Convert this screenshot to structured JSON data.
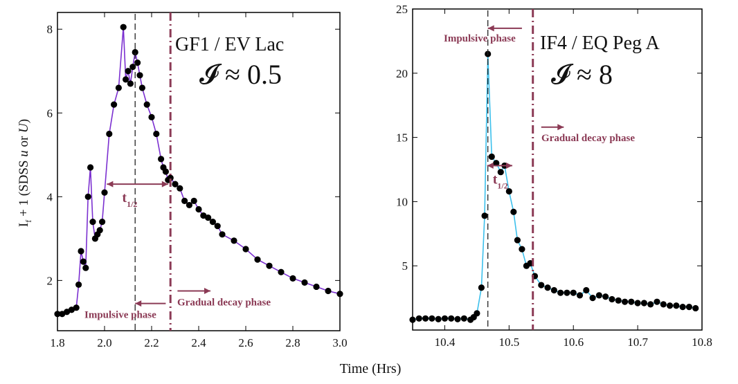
{
  "figure": {
    "xlabel_shared": "Time (Hrs)",
    "ylabel": {
      "main": "I",
      "sub": "f",
      "tail": " + 1 (SDSS ",
      "u": "u",
      "or": " or ",
      "U": "U",
      "close": ")"
    }
  },
  "colors": {
    "annotation": "#8b3a55",
    "curve_left": "#7b2fd0",
    "curve_right": "#3cc0ec",
    "marker": "#000000"
  },
  "chart_data": [
    {
      "type": "line",
      "title": "GF1 / EV Lac",
      "index_label": "𝓘 ≈ 0.5",
      "xlim": [
        1.8,
        3.0
      ],
      "ylim": [
        0.8,
        8.4
      ],
      "xticks": [
        1.8,
        2.0,
        2.2,
        2.4,
        2.6,
        2.8,
        3.0
      ],
      "xtick_labels": [
        "1.8",
        "2.0",
        "2.2",
        "2.4",
        "2.6",
        "2.8",
        "3.0"
      ],
      "yticks": [
        2,
        4,
        6,
        8
      ],
      "ytick_labels": [
        "2",
        "4",
        "6",
        "8"
      ],
      "peak_time": 2.13,
      "decay_boundary": 2.28,
      "t_half": {
        "label": "t",
        "sub": "1/2",
        "start": 2.01,
        "end": 2.27,
        "level": 4.3
      },
      "annotations": {
        "impulsive": {
          "label": "Impulsive phase",
          "arrow_from": 2.26,
          "arrow_to": 2.13,
          "level": 1.45
        },
        "gradual": {
          "label": "Gradual decay phase",
          "arrow_from": 2.31,
          "arrow_to": 2.45,
          "level": 1.75
        }
      },
      "series": [
        {
          "name": "flare",
          "x": [
            1.8,
            1.82,
            1.84,
            1.86,
            1.88,
            1.89,
            1.9,
            1.91,
            1.92,
            1.93,
            1.94,
            1.95,
            1.96,
            1.97,
            1.98,
            1.99,
            2.0,
            2.02,
            2.04,
            2.06,
            2.08,
            2.09,
            2.1,
            2.11,
            2.12,
            2.13,
            2.14,
            2.15,
            2.16,
            2.18,
            2.2,
            2.22,
            2.24,
            2.25,
            2.26,
            2.27,
            2.28,
            2.3,
            2.32,
            2.34,
            2.36,
            2.38,
            2.4,
            2.42,
            2.44,
            2.46,
            2.48,
            2.5,
            2.55,
            2.6,
            2.65,
            2.7,
            2.75,
            2.8,
            2.85,
            2.9,
            2.95,
            3.0
          ],
          "y": [
            1.2,
            1.2,
            1.25,
            1.3,
            1.35,
            1.9,
            2.7,
            2.45,
            2.3,
            4.0,
            4.7,
            3.4,
            3.0,
            3.1,
            3.2,
            3.4,
            4.1,
            5.5,
            6.2,
            6.6,
            8.05,
            6.8,
            7.0,
            6.7,
            7.1,
            7.45,
            7.2,
            6.9,
            6.6,
            6.2,
            5.9,
            5.5,
            4.9,
            4.7,
            4.6,
            4.4,
            4.45,
            4.3,
            4.2,
            3.9,
            3.8,
            3.9,
            3.7,
            3.55,
            3.5,
            3.4,
            3.3,
            3.1,
            2.95,
            2.75,
            2.5,
            2.35,
            2.2,
            2.05,
            1.95,
            1.85,
            1.75,
            1.68
          ]
        }
      ]
    },
    {
      "type": "line",
      "title": "IF4 / EQ Peg A",
      "index_label": "𝓘 ≈ 8",
      "xlim": [
        10.35,
        10.8
      ],
      "ylim": [
        0,
        25
      ],
      "xticks": [
        10.4,
        10.5,
        10.6,
        10.7,
        10.8
      ],
      "xtick_labels": [
        "10.4",
        "10.5",
        "10.6",
        "10.7",
        "10.8"
      ],
      "yticks": [
        5,
        10,
        15,
        20,
        25
      ],
      "ytick_labels": [
        "5",
        "10",
        "15",
        "20",
        "25"
      ],
      "peak_time": 10.467,
      "decay_boundary": 10.537,
      "t_half": {
        "label": "t",
        "sub": "1/2",
        "start": 10.466,
        "end": 10.505,
        "level": 12.8
      },
      "annotations": {
        "impulsive": {
          "label": "Impulsive phase",
          "arrow_from": 10.52,
          "arrow_to": 10.467,
          "level": 23.5
        },
        "gradual": {
          "label": "Gradual decay phase",
          "arrow_from": 10.55,
          "arrow_to": 10.585,
          "level": 15.8
        }
      },
      "series": [
        {
          "name": "flare",
          "x": [
            10.35,
            10.36,
            10.37,
            10.38,
            10.39,
            10.4,
            10.41,
            10.42,
            10.43,
            10.44,
            10.445,
            10.45,
            10.457,
            10.462,
            10.467,
            10.473,
            10.48,
            10.487,
            10.493,
            10.5,
            10.507,
            10.513,
            10.52,
            10.527,
            10.533,
            10.54,
            10.55,
            10.56,
            10.57,
            10.58,
            10.59,
            10.6,
            10.61,
            10.62,
            10.63,
            10.64,
            10.65,
            10.66,
            10.67,
            10.68,
            10.69,
            10.7,
            10.71,
            10.72,
            10.73,
            10.74,
            10.75,
            10.76,
            10.77,
            10.78,
            10.79
          ],
          "y": [
            0.8,
            0.9,
            0.9,
            0.9,
            0.85,
            0.9,
            0.9,
            0.85,
            0.9,
            0.8,
            1.0,
            1.3,
            3.3,
            8.9,
            21.5,
            13.5,
            13.0,
            12.3,
            12.8,
            10.8,
            9.2,
            7.0,
            6.3,
            5.0,
            5.2,
            4.2,
            3.5,
            3.3,
            3.1,
            2.9,
            2.9,
            2.9,
            2.7,
            3.1,
            2.5,
            2.7,
            2.6,
            2.4,
            2.3,
            2.2,
            2.2,
            2.1,
            2.1,
            2.0,
            2.2,
            2.0,
            1.9,
            1.9,
            1.8,
            1.8,
            1.7
          ]
        }
      ]
    }
  ]
}
